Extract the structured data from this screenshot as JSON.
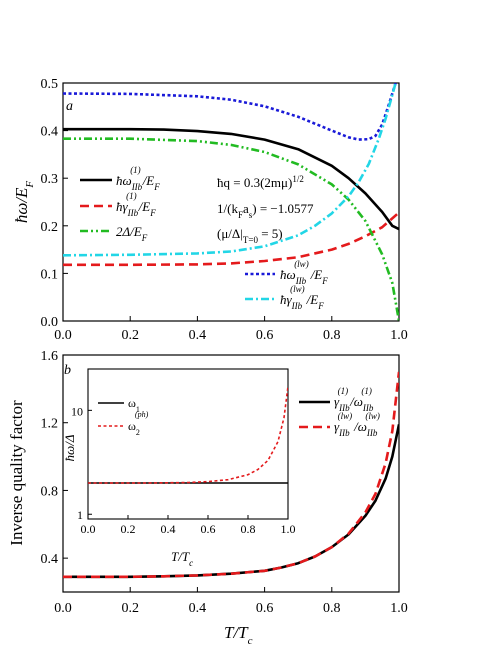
{
  "chart_data": [
    {
      "type": "line",
      "panel_label": "a",
      "xlabel": "",
      "ylabel": "ħω/E_F",
      "xlim": [
        0.0,
        1.0
      ],
      "ylim": [
        0.0,
        0.5
      ],
      "xticks": [
        "0.0",
        "0.2",
        "0.4",
        "0.6",
        "0.8",
        "1.0"
      ],
      "yticks": [
        "0.0",
        "0.1",
        "0.2",
        "0.3",
        "0.4",
        "0.5"
      ],
      "annotations": [
        "ħq = 0.3(2mμ)^1/2",
        "1/(k_F a_s) = −1.0577",
        "(μ/Δ|_T=0 = 5)"
      ],
      "series": [
        {
          "name": "ħω_IIb^(1)/E_F",
          "color": "#000000",
          "dash": "solid",
          "x": [
            0.0,
            0.1,
            0.2,
            0.3,
            0.4,
            0.5,
            0.6,
            0.7,
            0.8,
            0.85,
            0.9,
            0.95,
            0.98,
            1.0
          ],
          "y": [
            0.403,
            0.403,
            0.403,
            0.402,
            0.399,
            0.393,
            0.381,
            0.361,
            0.326,
            0.3,
            0.268,
            0.229,
            0.2,
            0.193
          ]
        },
        {
          "name": "ħγ_IIb^(1)/E_F",
          "color": "#e41a1c",
          "dash": "long",
          "x": [
            0.0,
            0.2,
            0.4,
            0.5,
            0.6,
            0.7,
            0.8,
            0.85,
            0.9,
            0.95,
            1.0
          ],
          "y": [
            0.118,
            0.118,
            0.119,
            0.121,
            0.126,
            0.134,
            0.15,
            0.162,
            0.178,
            0.197,
            0.228
          ]
        },
        {
          "name": "2Δ/E_F",
          "color": "#22bb22",
          "dash": "dashdotdot",
          "x": [
            0.0,
            0.2,
            0.4,
            0.5,
            0.6,
            0.7,
            0.8,
            0.85,
            0.9,
            0.95,
            0.98,
            1.0
          ],
          "y": [
            0.383,
            0.383,
            0.378,
            0.37,
            0.355,
            0.329,
            0.287,
            0.255,
            0.21,
            0.14,
            0.08,
            0.0
          ]
        },
        {
          "name": "ħω_IIb^(lw)/E_F",
          "color": "#1a1ad8",
          "dash": "short",
          "x": [
            0.0,
            0.2,
            0.4,
            0.5,
            0.6,
            0.7,
            0.8,
            0.85,
            0.88,
            0.91,
            0.93,
            0.95,
            0.97,
            0.99
          ],
          "y": [
            0.478,
            0.477,
            0.472,
            0.465,
            0.451,
            0.429,
            0.4,
            0.386,
            0.381,
            0.382,
            0.389,
            0.413,
            0.455,
            0.5
          ]
        },
        {
          "name": "ħγ_IIb^(lw)/E_F",
          "color": "#22d6e6",
          "dash": "dashdot",
          "x": [
            0.0,
            0.2,
            0.4,
            0.5,
            0.6,
            0.7,
            0.75,
            0.8,
            0.85,
            0.88,
            0.91,
            0.94,
            0.96,
            0.98,
            0.99
          ],
          "y": [
            0.138,
            0.139,
            0.142,
            0.146,
            0.157,
            0.18,
            0.2,
            0.226,
            0.262,
            0.292,
            0.33,
            0.383,
            0.425,
            0.475,
            0.5
          ]
        }
      ]
    },
    {
      "type": "line",
      "panel_label": "b",
      "xlabel": "T/T_c",
      "ylabel": "Inverse quality factor",
      "xlim": [
        0.0,
        1.0
      ],
      "ylim": [
        0.2,
        1.6
      ],
      "xticks": [
        "0.0",
        "0.2",
        "0.4",
        "0.6",
        "0.8",
        "1.0"
      ],
      "yticks": [
        "0.4",
        "0.8",
        "1.2",
        "1.6"
      ],
      "series": [
        {
          "name": "γ_IIb^(1)/ω_IIb^(1)",
          "color": "#000000",
          "dash": "solid",
          "x": [
            0.0,
            0.2,
            0.3,
            0.4,
            0.5,
            0.6,
            0.65,
            0.7,
            0.75,
            0.8,
            0.85,
            0.9,
            0.93,
            0.96,
            0.98,
            1.0
          ],
          "y": [
            0.29,
            0.29,
            0.293,
            0.298,
            0.308,
            0.325,
            0.345,
            0.37,
            0.41,
            0.465,
            0.54,
            0.65,
            0.74,
            0.87,
            1.0,
            1.19
          ]
        },
        {
          "name": "γ_IIb^(lw)/ω_IIb^(lw)",
          "color": "#e41a1c",
          "dash": "long",
          "x": [
            0.0,
            0.2,
            0.3,
            0.4,
            0.5,
            0.6,
            0.65,
            0.7,
            0.75,
            0.8,
            0.85,
            0.9,
            0.93,
            0.96,
            0.98,
            1.0
          ],
          "y": [
            0.29,
            0.29,
            0.293,
            0.298,
            0.308,
            0.325,
            0.345,
            0.37,
            0.41,
            0.465,
            0.545,
            0.67,
            0.78,
            0.96,
            1.15,
            1.5
          ]
        }
      ]
    },
    {
      "type": "line",
      "panel_label": "inset",
      "xlabel": "T/T_c",
      "ylabel": "ħω/Δ",
      "yscale": "log",
      "xlim": [
        0.0,
        1.0
      ],
      "ylim": [
        0.9,
        25
      ],
      "xticks": [
        "0.0",
        "0.2",
        "0.4",
        "0.6",
        "0.8",
        "1.0"
      ],
      "yticks": [
        "1",
        "10"
      ],
      "series": [
        {
          "name": "ω_1",
          "color": "#000000",
          "dash": "solid",
          "x": [
            0.0,
            1.0
          ],
          "y": [
            2.0,
            2.0
          ]
        },
        {
          "name": "ω_2^(ph)",
          "color": "#e41a1c",
          "dash": "short",
          "x": [
            0.0,
            0.3,
            0.5,
            0.6,
            0.7,
            0.8,
            0.85,
            0.9,
            0.95,
            0.98,
            1.0
          ],
          "y": [
            2.0,
            2.0,
            2.02,
            2.06,
            2.15,
            2.4,
            2.7,
            3.3,
            5.0,
            8.5,
            17.0
          ]
        }
      ]
    }
  ]
}
